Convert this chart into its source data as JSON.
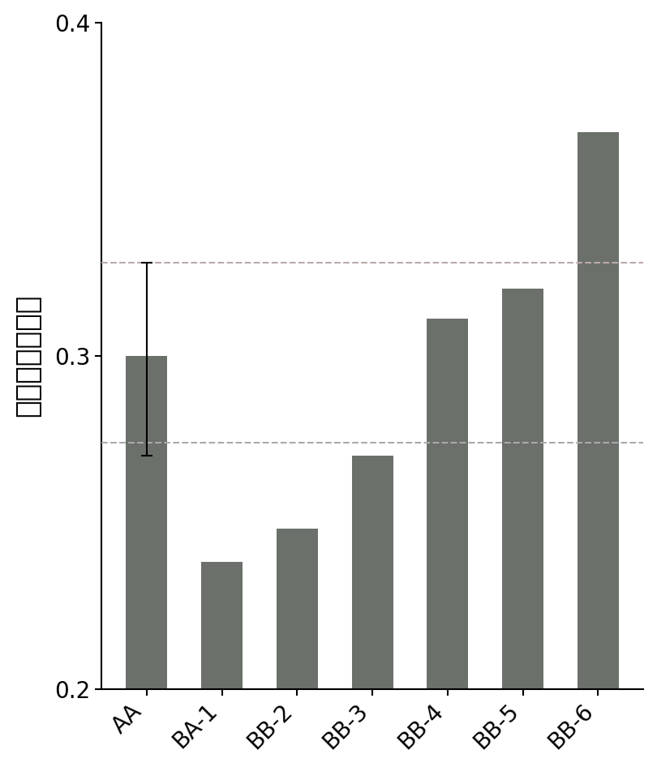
{
  "categories": [
    "AA",
    "BA-1",
    "BB-2",
    "BB-3",
    "BB-4",
    "BB-5",
    "BB-6"
  ],
  "values": [
    0.3,
    0.238,
    0.248,
    0.27,
    0.311,
    0.32,
    0.367
  ],
  "bar_color": "#6b706b",
  "bar_width": 0.55,
  "ylim": [
    0.2,
    0.4
  ],
  "yticks": [
    0.2,
    0.3,
    0.4
  ],
  "ylabel": "平均甲基化水平",
  "dashed_line_lower": 0.274,
  "dashed_line_upper": 0.328,
  "dashed_color_lower": "#aaaaaa",
  "dashed_color_upper": "#bbaaaa",
  "error_bar_index": 0,
  "error_bar_lower": 0.27,
  "error_bar_upper": 0.328,
  "error_bar_center": 0.3,
  "background_color": "#ffffff",
  "tick_label_fontsize": 20,
  "ylabel_fontsize": 26,
  "bar_bottom": 0.2
}
